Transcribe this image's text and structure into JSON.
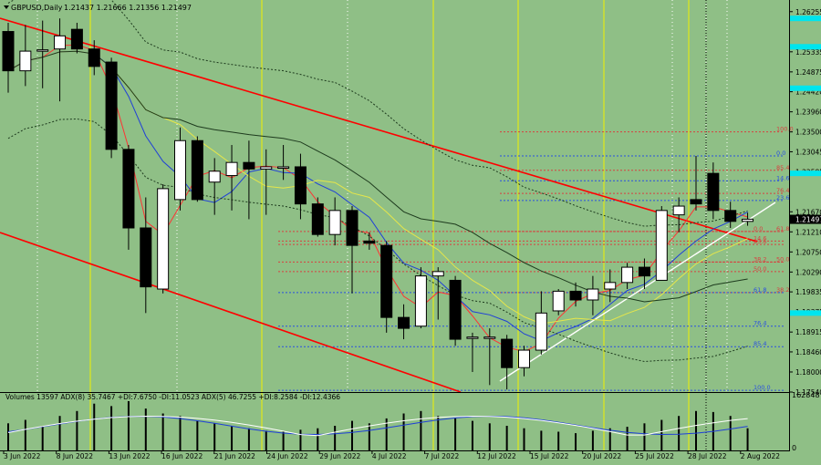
{
  "header": {
    "symbol_label": "GBPUSD,Daily",
    "ohlc": "1.21437 1.21666 1.21356 1.21497"
  },
  "volume_panel": {
    "label": "Volumes 13597  ADX(8) 35.7467 +DI:7.6750 -DI:11.0523  ADX(5) 46.7255 +DI:8.2584 -DI:12.4366",
    "max_label": "162848",
    "zero_label": "0"
  },
  "price_axis": {
    "ticks": [
      "1.26255",
      "1.25335",
      "1.24875",
      "1.24420",
      "1.23960",
      "1.23500",
      "1.23045",
      "1.22585",
      "1.21670",
      "1.21210",
      "1.20750",
      "1.20290",
      "1.19835",
      "1.19375",
      "1.18915",
      "1.18460",
      "1.18000",
      "1.17540"
    ],
    "current_price": "1.21497"
  },
  "date_axis": {
    "labels": [
      "3 Jun 2022",
      "8 Jun 2022",
      "13 Jun 2022",
      "16 Jun 2022",
      "21 Jun 2022",
      "24 Jun 2022",
      "29 Jun 2022",
      "4 Jul 2022",
      "7 Jul 2022",
      "12 Jul 2022",
      "15 Jul 2022",
      "20 Jul 2022",
      "25 Jul 2022",
      "28 Jul 2022",
      "2 Aug 2022"
    ]
  },
  "fibo_upper": [
    "100.0",
    "85.4",
    "76.4",
    "61.8",
    "50.0",
    "38.2",
    "23.6",
    "14.6",
    "0.0"
  ],
  "fibo_lower": [
    "0.0",
    "14.6",
    "23.6",
    "38.2",
    "50.0",
    "61.8",
    "76.4",
    "85.4",
    "100.0"
  ],
  "colors": {
    "background": "#8fbf86",
    "bull_candle": "#ffffff",
    "bear_candle": "#000000",
    "channel": "#ff0000",
    "trendline": "#ffffff",
    "day_separator": "#f2f200",
    "ma_fast": "#ff3333",
    "ma_mid": "#1f3fd8",
    "ma_slow": "#e6e64a",
    "ma_long": "#1e3b1e",
    "fibo_red": "#d84040",
    "fibo_blue": "#2a50e0",
    "highlight": "#00e5ee"
  },
  "chart_data": {
    "type": "candlestick",
    "symbol": "GBPUSD",
    "timeframe": "Daily",
    "ylim": [
      1.1754,
      1.2648
    ],
    "candles": [
      {
        "o": 1.258,
        "h": 1.26,
        "l": 1.244,
        "c": 1.249
      },
      {
        "o": 1.249,
        "h": 1.2595,
        "l": 1.2455,
        "c": 1.2535
      },
      {
        "o": 1.2535,
        "h": 1.2605,
        "l": 1.245,
        "c": 1.2538
      },
      {
        "o": 1.254,
        "h": 1.261,
        "l": 1.242,
        "c": 1.257
      },
      {
        "o": 1.2585,
        "h": 1.26,
        "l": 1.253,
        "c": 1.254
      },
      {
        "o": 1.254,
        "h": 1.256,
        "l": 1.248,
        "c": 1.25
      },
      {
        "o": 1.251,
        "h": 1.252,
        "l": 1.229,
        "c": 1.231
      },
      {
        "o": 1.231,
        "h": 1.232,
        "l": 1.208,
        "c": 1.213
      },
      {
        "o": 1.213,
        "h": 1.22,
        "l": 1.1935,
        "c": 1.1995
      },
      {
        "o": 1.199,
        "h": 1.223,
        "l": 1.198,
        "c": 1.222
      },
      {
        "o": 1.2195,
        "h": 1.236,
        "l": 1.217,
        "c": 1.233
      },
      {
        "o": 1.233,
        "h": 1.234,
        "l": 1.219,
        "c": 1.2195
      },
      {
        "o": 1.2235,
        "h": 1.229,
        "l": 1.216,
        "c": 1.226
      },
      {
        "o": 1.225,
        "h": 1.232,
        "l": 1.217,
        "c": 1.228
      },
      {
        "o": 1.228,
        "h": 1.233,
        "l": 1.215,
        "c": 1.2265
      },
      {
        "o": 1.2265,
        "h": 1.231,
        "l": 1.216,
        "c": 1.227
      },
      {
        "o": 1.227,
        "h": 1.232,
        "l": 1.224,
        "c": 1.227
      },
      {
        "o": 1.227,
        "h": 1.23,
        "l": 1.215,
        "c": 1.2185
      },
      {
        "o": 1.2185,
        "h": 1.22,
        "l": 1.211,
        "c": 1.2115
      },
      {
        "o": 1.2115,
        "h": 1.22,
        "l": 1.209,
        "c": 1.217
      },
      {
        "o": 1.217,
        "h": 1.218,
        "l": 1.198,
        "c": 1.209
      },
      {
        "o": 1.21,
        "h": 1.212,
        "l": 1.208,
        "c": 1.2095
      },
      {
        "o": 1.209,
        "h": 1.21,
        "l": 1.189,
        "c": 1.1925
      },
      {
        "o": 1.1925,
        "h": 1.1955,
        "l": 1.1875,
        "c": 1.19
      },
      {
        "o": 1.1905,
        "h": 1.204,
        "l": 1.19,
        "c": 1.202
      },
      {
        "o": 1.202,
        "h": 1.204,
        "l": 1.192,
        "c": 1.203
      },
      {
        "o": 1.201,
        "h": 1.202,
        "l": 1.186,
        "c": 1.1875
      },
      {
        "o": 1.188,
        "h": 1.189,
        "l": 1.18,
        "c": 1.188
      },
      {
        "o": 1.188,
        "h": 1.19,
        "l": 1.177,
        "c": 1.188
      },
      {
        "o": 1.1875,
        "h": 1.1885,
        "l": 1.176,
        "c": 1.181
      },
      {
        "o": 1.181,
        "h": 1.186,
        "l": 1.179,
        "c": 1.185
      },
      {
        "o": 1.185,
        "h": 1.1985,
        "l": 1.184,
        "c": 1.1935
      },
      {
        "o": 1.194,
        "h": 1.199,
        "l": 1.193,
        "c": 1.1985
      },
      {
        "o": 1.1985,
        "h": 1.2005,
        "l": 1.195,
        "c": 1.1965
      },
      {
        "o": 1.1965,
        "h": 1.202,
        "l": 1.193,
        "c": 1.199
      },
      {
        "o": 1.199,
        "h": 1.2035,
        "l": 1.196,
        "c": 1.2005
      },
      {
        "o": 1.2005,
        "h": 1.205,
        "l": 1.199,
        "c": 1.204
      },
      {
        "o": 1.204,
        "h": 1.206,
        "l": 1.199,
        "c": 1.202
      },
      {
        "o": 1.201,
        "h": 1.218,
        "l": 1.201,
        "c": 1.217
      },
      {
        "o": 1.216,
        "h": 1.22,
        "l": 1.212,
        "c": 1.218
      },
      {
        "o": 1.2195,
        "h": 1.2295,
        "l": 1.217,
        "c": 1.2185
      },
      {
        "o": 1.2255,
        "h": 1.228,
        "l": 1.215,
        "c": 1.217
      },
      {
        "o": 1.217,
        "h": 1.219,
        "l": 1.213,
        "c": 1.2145
      },
      {
        "o": 1.2145,
        "h": 1.2165,
        "l": 1.2135,
        "c": 1.215
      }
    ]
  }
}
